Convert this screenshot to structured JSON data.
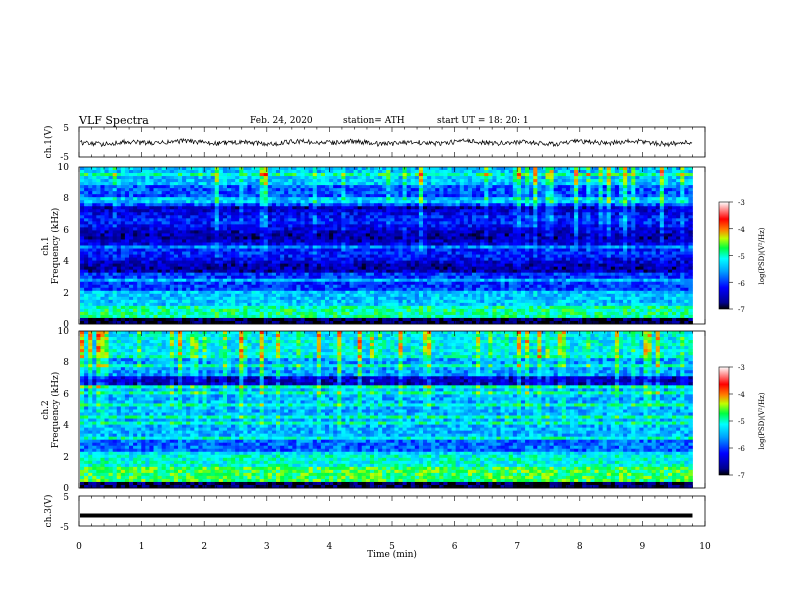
{
  "header": {
    "title": "VLF  Spectra",
    "date": "Feb. 24, 2020",
    "station": "station= ATH",
    "start": "start  UT  =    18: 20: 1"
  },
  "chart_data": [
    {
      "type": "line",
      "name": "ch1-waveform",
      "ylabel": "ch.1(V)",
      "yticks": [
        "5",
        "-5"
      ],
      "ylim": [
        -5,
        5
      ],
      "xlim": [
        0,
        10
      ],
      "x_end": 9.8,
      "mean": -0.2,
      "amplitude_approx": 1.0
    },
    {
      "type": "heatmap",
      "name": "ch1-spectrogram",
      "ylabel_line1": "ch.1",
      "ylabel_line2": "Frequency  (kHz)",
      "yticks": [
        "10",
        "8",
        "6",
        "4",
        "2",
        "0"
      ],
      "ylim": [
        0,
        10
      ],
      "xlim": [
        0,
        10
      ],
      "x_end": 9.8,
      "colorbar": {
        "label": "log(PSD)(V²/Hz)",
        "ticks": [
          "-3",
          "-4",
          "-5",
          "-6",
          "-7"
        ],
        "range": [
          -7,
          -3
        ]
      }
    },
    {
      "type": "heatmap",
      "name": "ch2-spectrogram",
      "ylabel_line1": "ch.2",
      "ylabel_line2": "Frequency  (kHz)",
      "yticks": [
        "10",
        "8",
        "6",
        "4",
        "2",
        "0"
      ],
      "ylim": [
        0,
        10
      ],
      "xlim": [
        0,
        10
      ],
      "x_end": 9.8,
      "colorbar": {
        "label": "log(PSD)(V²/Hz)",
        "ticks": [
          "-3",
          "-4",
          "-5",
          "-6",
          "-7"
        ],
        "range": [
          -7,
          -3
        ]
      }
    },
    {
      "type": "line",
      "name": "ch3-waveform",
      "ylabel": "ch.3(V)",
      "yticks": [
        "5",
        "-5"
      ],
      "ylim": [
        -5,
        5
      ],
      "xlim": [
        0,
        10
      ],
      "x_end": 9.8,
      "value": -1.5
    }
  ],
  "xaxis": {
    "label": "Time  (min)",
    "ticks": [
      "0",
      "1",
      "2",
      "3",
      "4",
      "5",
      "6",
      "7",
      "8",
      "9",
      "10"
    ],
    "range": [
      0,
      10
    ]
  }
}
